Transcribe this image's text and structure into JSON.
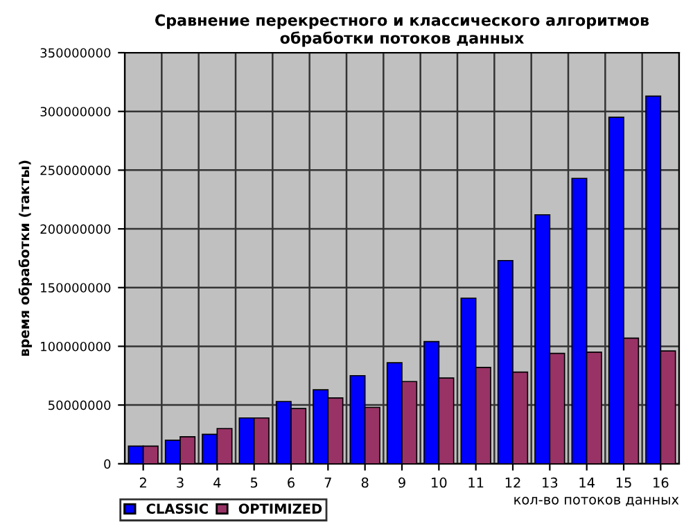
{
  "chart_data": {
    "type": "bar",
    "title": "Сравнение перекрестного и классического алгоритмов обработки потоков данных",
    "xlabel": "кол-во потоков данных",
    "ylabel": "время обработки (такты)",
    "categories": [
      "2",
      "3",
      "4",
      "5",
      "6",
      "7",
      "8",
      "9",
      "10",
      "11",
      "12",
      "13",
      "14",
      "15",
      "16"
    ],
    "series": [
      {
        "name": "CLASSIC",
        "color": "#0000ff",
        "values": [
          15000000,
          20000000,
          25000000,
          39000000,
          53000000,
          63000000,
          75000000,
          86000000,
          104000000,
          141000000,
          173000000,
          212000000,
          243000000,
          295000000,
          313000000
        ]
      },
      {
        "name": "OPTIMIZED",
        "color": "#993366",
        "values": [
          15000000,
          23000000,
          30000000,
          39000000,
          47000000,
          56000000,
          48000000,
          70000000,
          73000000,
          82000000,
          78000000,
          94000000,
          95000000,
          107000000,
          96000000
        ]
      }
    ],
    "ylim": [
      0,
      350000000
    ],
    "yticks": [
      0,
      50000000,
      100000000,
      150000000,
      200000000,
      250000000,
      300000000,
      350000000
    ],
    "grid": true,
    "legend": "bottom left"
  }
}
